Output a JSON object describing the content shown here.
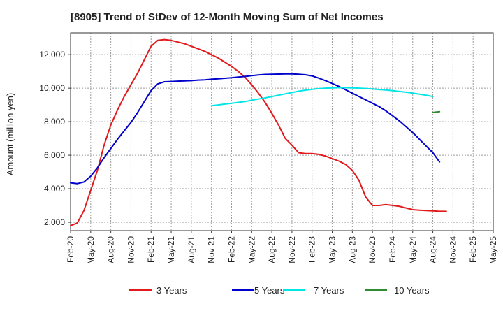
{
  "chart_data": {
    "type": "line",
    "title": "[8905]  Trend of StDev of 12-Month Moving Sum of Net Incomes",
    "xlabel": "",
    "ylabel": "Amount (million yen)",
    "x_ticks": [
      "Feb-20",
      "May-20",
      "Aug-20",
      "Nov-20",
      "Feb-21",
      "May-21",
      "Aug-21",
      "Nov-21",
      "Feb-22",
      "May-22",
      "Aug-22",
      "Nov-22",
      "Feb-23",
      "May-23",
      "Aug-23",
      "Nov-23",
      "Feb-24",
      "May-24",
      "Aug-24",
      "Nov-24",
      "Feb-25",
      "May-25"
    ],
    "y_ticks": [
      "2,000",
      "4,000",
      "6,000",
      "8,000",
      "10,000",
      "12,000"
    ],
    "y_tick_values": [
      2000,
      4000,
      6000,
      8000,
      10000,
      12000
    ],
    "ylim": [
      1500,
      13300
    ],
    "grid": true,
    "legend_position": "bottom",
    "series": [
      {
        "name": "3 Years",
        "color": "#e31a1c",
        "x_index_start": 0,
        "values": [
          1800,
          1950,
          2700,
          3900,
          5100,
          6600,
          7800,
          8700,
          9500,
          10200,
          10900,
          11700,
          12500,
          12850,
          12900,
          12850,
          12750,
          12650,
          12500,
          12350,
          12200,
          12000,
          11800,
          11550,
          11300,
          11000,
          10650,
          10200,
          9700,
          9150,
          8500,
          7800,
          7000,
          6600,
          6150,
          6100,
          6100,
          6050,
          5950,
          5800,
          5650,
          5450,
          5100,
          4500,
          3500,
          3000,
          3000,
          3050,
          3000,
          2950,
          2850,
          2750,
          2720,
          2700,
          2680,
          2650,
          2650
        ]
      },
      {
        "name": "5 Years",
        "color": "#0000cc",
        "x_index_start": 0,
        "values": [
          4350,
          4300,
          4400,
          4750,
          5250,
          5850,
          6400,
          6950,
          7450,
          7950,
          8550,
          9200,
          9850,
          10250,
          10380,
          10400,
          10420,
          10430,
          10450,
          10480,
          10500,
          10530,
          10560,
          10590,
          10620,
          10660,
          10700,
          10750,
          10790,
          10820,
          10830,
          10840,
          10850,
          10850,
          10830,
          10800,
          10730,
          10600,
          10450,
          10280,
          10100,
          9900,
          9700,
          9500,
          9300,
          9100,
          8900,
          8650,
          8350,
          8050,
          7700,
          7350,
          6950,
          6550,
          6150,
          5600
        ]
      },
      {
        "name": "7 Years",
        "color": "#00e5e5",
        "x_index_start": 21,
        "values": [
          8950,
          9000,
          9050,
          9100,
          9150,
          9200,
          9280,
          9350,
          9420,
          9500,
          9580,
          9660,
          9740,
          9820,
          9880,
          9930,
          9970,
          10000,
          10020,
          10030,
          10030,
          10020,
          10000,
          9980,
          9950,
          9920,
          9890,
          9850,
          9800,
          9760,
          9700,
          9640,
          9580,
          9500
        ]
      },
      {
        "name": "10 Years",
        "color": "#2e8b2e",
        "x_index_start": 54,
        "values": [
          8550,
          8600
        ]
      }
    ]
  }
}
